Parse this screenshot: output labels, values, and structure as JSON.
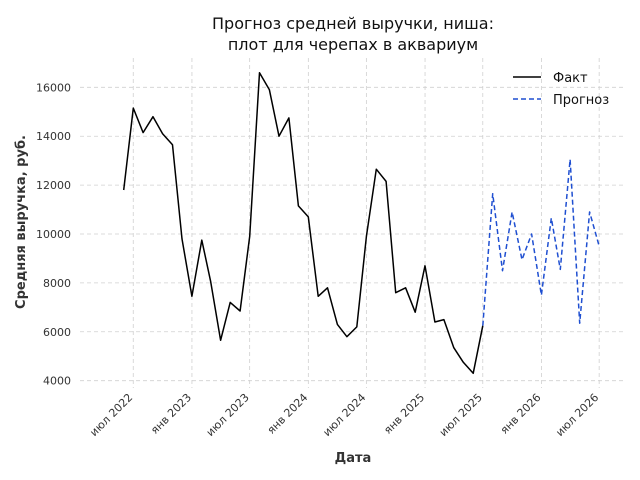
{
  "chart_data": {
    "type": "line",
    "title_lines": [
      "Прогноз средней выручки, ниша:",
      "плот для черепах в аквариум"
    ],
    "xlabel": "Дата",
    "ylabel": "Средняя выручка, руб.",
    "ylim": [
      3700,
      17200
    ],
    "yticks": [
      4000,
      6000,
      8000,
      10000,
      12000,
      14000,
      16000
    ],
    "x_range": [
      "2022-01-15",
      "2026-09-20"
    ],
    "xticks": [
      {
        "date": "2022-07-01",
        "label": "июл 2022"
      },
      {
        "date": "2023-01-01",
        "label": "янв 2023"
      },
      {
        "date": "2023-07-01",
        "label": "июл 2023"
      },
      {
        "date": "2024-01-01",
        "label": "янв 2024"
      },
      {
        "date": "2024-07-01",
        "label": "июл 2024"
      },
      {
        "date": "2025-01-01",
        "label": "янв 2025"
      },
      {
        "date": "2025-07-01",
        "label": "июл 2025"
      },
      {
        "date": "2026-01-01",
        "label": "янв 2026"
      },
      {
        "date": "2026-07-01",
        "label": "июл 2026"
      }
    ],
    "grid": true,
    "legend_position": "top-right",
    "series": [
      {
        "name": "Факт",
        "color": "#000000",
        "style": "solid",
        "x": [
          "2022-06-01",
          "2022-07-01",
          "2022-08-01",
          "2022-09-01",
          "2022-10-01",
          "2022-11-01",
          "2022-12-01",
          "2023-01-01",
          "2023-02-01",
          "2023-03-01",
          "2023-04-01",
          "2023-05-01",
          "2023-06-01",
          "2023-07-01",
          "2023-08-01",
          "2023-09-01",
          "2023-10-01",
          "2023-11-01",
          "2023-12-01",
          "2024-01-01",
          "2024-02-01",
          "2024-03-01",
          "2024-04-01",
          "2024-05-01",
          "2024-06-01",
          "2024-07-01",
          "2024-08-01",
          "2024-09-01",
          "2024-10-01",
          "2024-11-01",
          "2024-12-01",
          "2025-01-01",
          "2025-02-01",
          "2025-03-01",
          "2025-04-01",
          "2025-05-01",
          "2025-06-01",
          "2025-07-01"
        ],
        "y": [
          11800,
          15150,
          14150,
          14800,
          14100,
          13650,
          9800,
          7450,
          9750,
          8050,
          5650,
          7200,
          6850,
          9900,
          16600,
          15900,
          14000,
          14750,
          11150,
          10700,
          7450,
          7800,
          6300,
          5800,
          6200,
          9900,
          12650,
          12150,
          7600,
          7800,
          6800,
          8700,
          6400,
          6500,
          5350,
          4750,
          4300,
          6250
        ]
      },
      {
        "name": "Прогноз",
        "color": "#1f4fd1",
        "style": "dashed",
        "x": [
          "2025-07-01",
          "2025-08-01",
          "2025-09-01",
          "2025-10-01",
          "2025-11-01",
          "2025-12-01",
          "2026-01-01",
          "2026-02-01",
          "2026-03-01",
          "2026-04-01",
          "2026-05-01",
          "2026-06-01",
          "2026-07-01",
          "2026-08-01"
        ],
        "y": [
          6250,
          11650,
          8500,
          10900,
          8950,
          10000,
          7500,
          10650,
          8550,
          13050,
          6350,
          10900,
          9500,
          null
        ]
      }
    ]
  }
}
